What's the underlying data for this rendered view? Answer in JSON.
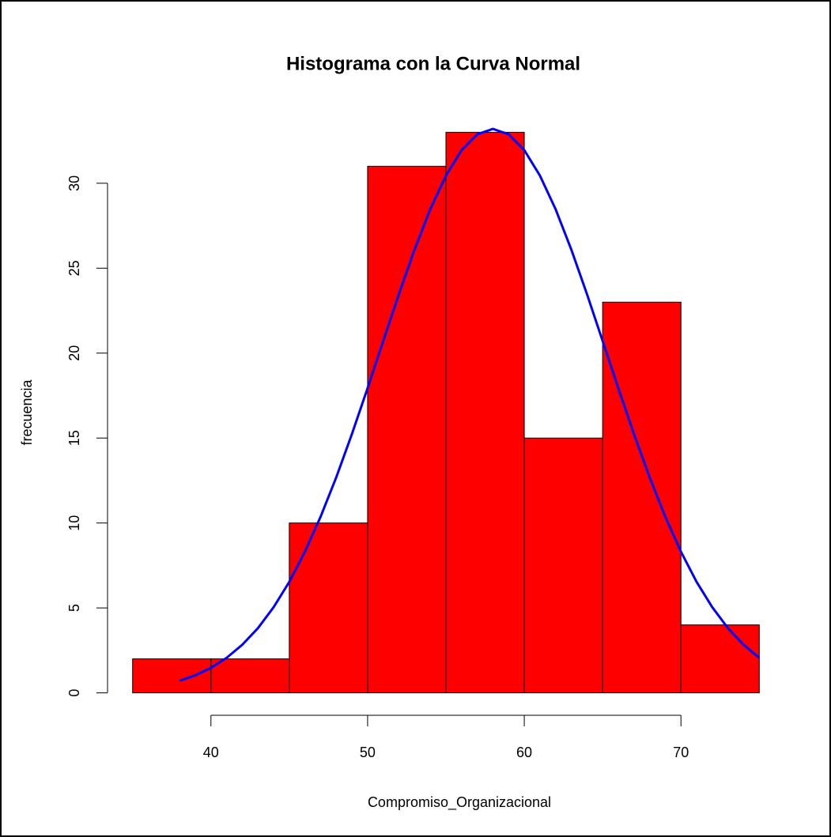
{
  "chart_data": {
    "type": "histogram",
    "title": "Histograma con la Curva Normal",
    "x_label": "Compromiso_Organizacional",
    "y_label": "frecuencia",
    "bins": [
      35,
      40,
      45,
      50,
      55,
      60,
      65,
      70,
      75
    ],
    "values": [
      2,
      2,
      10,
      31,
      33,
      15,
      23,
      4
    ],
    "color": "#ff0000",
    "curve": {
      "color": "#0000ff",
      "x": [
        38,
        39,
        40,
        41,
        42,
        43,
        44,
        45,
        46,
        47,
        48,
        49,
        50,
        51,
        52,
        53,
        54,
        55,
        56,
        57,
        58,
        59,
        60,
        61,
        62,
        63,
        64,
        65,
        66,
        67,
        68,
        69,
        70,
        71,
        72,
        73,
        74,
        75
      ],
      "values": [
        0.71,
        1.03,
        1.47,
        2.06,
        2.83,
        3.81,
        5.04,
        6.53,
        8.31,
        10.37,
        12.69,
        15.24,
        17.94,
        20.72,
        23.48,
        26.1,
        28.47,
        30.45,
        31.95,
        32.88,
        33.2,
        32.88,
        31.95,
        30.45,
        28.47,
        26.1,
        23.48,
        20.72,
        17.94,
        15.24,
        12.69,
        10.37,
        8.31,
        6.53,
        5.04,
        3.81,
        2.83,
        2.06
      ]
    },
    "xlim": [
      33.4,
      76.6
    ],
    "ylim": [
      -1.32,
      34.32
    ],
    "xticks": [
      40,
      50,
      60,
      70
    ],
    "yticks": [
      0,
      5,
      10,
      15,
      20,
      25,
      30
    ]
  }
}
